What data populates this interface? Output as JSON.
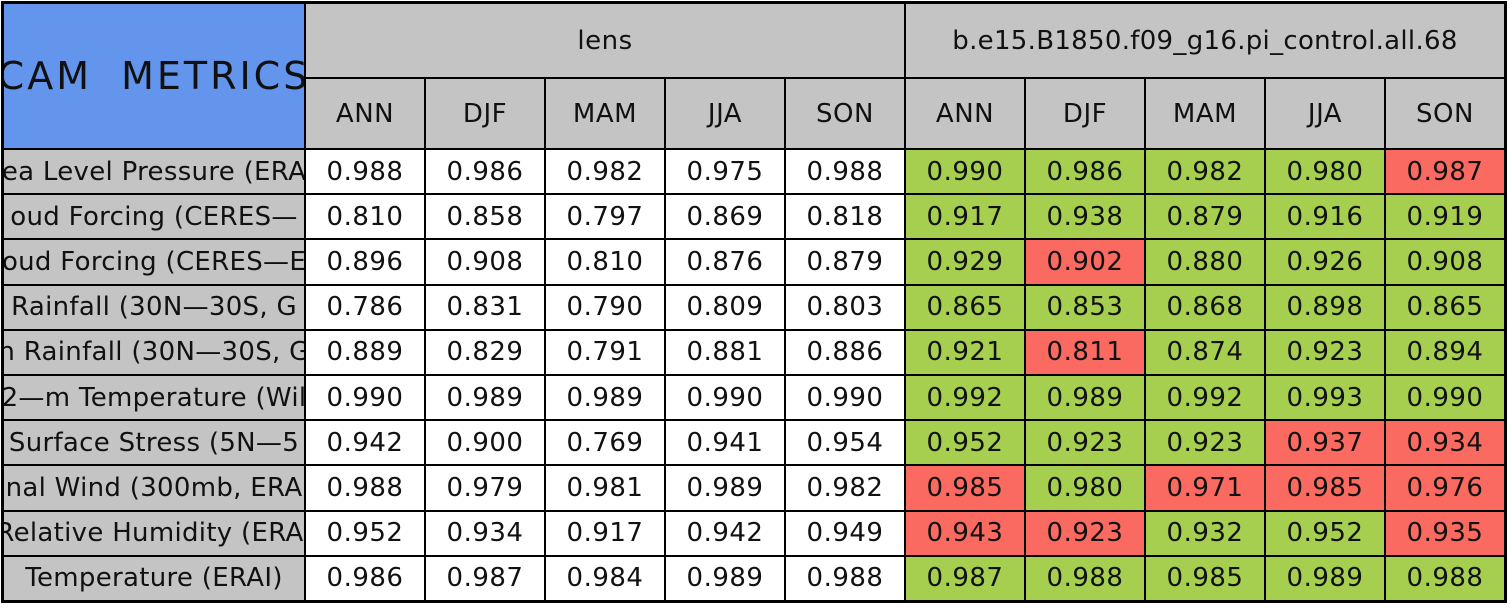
{
  "colors": {
    "title_blue": "#6495ED",
    "header_gray": "#C4C4C4",
    "good_green": "#A6CE4F",
    "bad_red": "#FA6A60",
    "cell_white": "#FFFFFF",
    "grid_line_black": "#000000"
  },
  "table": {
    "title": "CAM METRICS",
    "group_left": "lens",
    "group_right": "b.e15.B1850.f09_g16.pi_control.all.68"
  },
  "chart_data": {
    "type": "table",
    "title": "CAM METRICS",
    "column_groups": [
      {
        "name": "lens",
        "columns": [
          "ANN",
          "DJF",
          "MAM",
          "JJA",
          "SON"
        ]
      },
      {
        "name": "b.e15.B1850.f09_g16.pi_control.all.68",
        "columns": [
          "ANN",
          "DJF",
          "MAM",
          "JJA",
          "SON"
        ]
      }
    ],
    "rows": [
      {
        "label": "ea Level Pressure (ERA",
        "lens": [
          "0.988",
          "0.986",
          "0.982",
          "0.975",
          "0.988"
        ],
        "control": [
          "0.990",
          "0.986",
          "0.982",
          "0.980",
          "0.987"
        ],
        "control_colors": [
          "green",
          "green",
          "green",
          "green",
          "red"
        ]
      },
      {
        "label": "oud Forcing (CERES—",
        "lens": [
          "0.810",
          "0.858",
          "0.797",
          "0.869",
          "0.818"
        ],
        "control": [
          "0.917",
          "0.938",
          "0.879",
          "0.916",
          "0.919"
        ],
        "control_colors": [
          "green",
          "green",
          "green",
          "green",
          "green"
        ]
      },
      {
        "label": "oud Forcing (CERES—E",
        "lens": [
          "0.896",
          "0.908",
          "0.810",
          "0.876",
          "0.879"
        ],
        "control": [
          "0.929",
          "0.902",
          "0.880",
          "0.926",
          "0.908"
        ],
        "control_colors": [
          "green",
          "red",
          "green",
          "green",
          "green"
        ]
      },
      {
        "label": "Rainfall (30N—30S, G",
        "lens": [
          "0.786",
          "0.831",
          "0.790",
          "0.809",
          "0.803"
        ],
        "control": [
          "0.865",
          "0.853",
          "0.868",
          "0.898",
          "0.865"
        ],
        "control_colors": [
          "green",
          "green",
          "green",
          "green",
          "green"
        ]
      },
      {
        "label": "n Rainfall (30N—30S, G",
        "lens": [
          "0.889",
          "0.829",
          "0.791",
          "0.881",
          "0.886"
        ],
        "control": [
          "0.921",
          "0.811",
          "0.874",
          "0.923",
          "0.894"
        ],
        "control_colors": [
          "green",
          "red",
          "green",
          "green",
          "green"
        ]
      },
      {
        "label": "2—m Temperature (Wil",
        "lens": [
          "0.990",
          "0.989",
          "0.989",
          "0.990",
          "0.990"
        ],
        "control": [
          "0.992",
          "0.989",
          "0.992",
          "0.993",
          "0.990"
        ],
        "control_colors": [
          "green",
          "green",
          "green",
          "green",
          "green"
        ]
      },
      {
        "label": "Surface Stress (5N—5",
        "lens": [
          "0.942",
          "0.900",
          "0.769",
          "0.941",
          "0.954"
        ],
        "control": [
          "0.952",
          "0.923",
          "0.923",
          "0.937",
          "0.934"
        ],
        "control_colors": [
          "green",
          "green",
          "green",
          "red",
          "red"
        ]
      },
      {
        "label": "nal Wind (300mb, ERA",
        "lens": [
          "0.988",
          "0.979",
          "0.981",
          "0.989",
          "0.982"
        ],
        "control": [
          "0.985",
          "0.980",
          "0.971",
          "0.985",
          "0.976"
        ],
        "control_colors": [
          "red",
          "green",
          "red",
          "red",
          "red"
        ]
      },
      {
        "label": "Relative Humidity (ERAI",
        "lens": [
          "0.952",
          "0.934",
          "0.917",
          "0.942",
          "0.949"
        ],
        "control": [
          "0.943",
          "0.923",
          "0.932",
          "0.952",
          "0.935"
        ],
        "control_colors": [
          "red",
          "red",
          "green",
          "green",
          "red"
        ]
      },
      {
        "label": "Temperature (ERAI)",
        "lens": [
          "0.986",
          "0.987",
          "0.984",
          "0.989",
          "0.988"
        ],
        "control": [
          "0.987",
          "0.988",
          "0.985",
          "0.989",
          "0.988"
        ],
        "control_colors": [
          "green",
          "green",
          "green",
          "green",
          "green"
        ]
      }
    ]
  }
}
